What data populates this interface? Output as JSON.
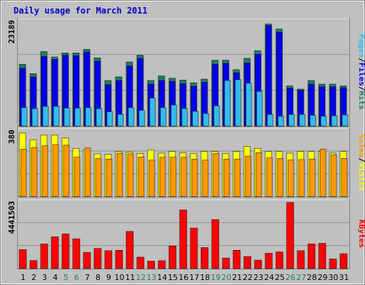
{
  "chart_data": [
    {
      "type": "bar",
      "title": "Daily usage for March 2011",
      "panel": "hits-files-pages",
      "ymax_label": "23189",
      "ymax": 23189,
      "series_labels": [
        "Pages",
        "/",
        "Files",
        "/",
        "Hits"
      ],
      "series": [
        {
          "name": "Hits",
          "color": "#1f7f5f",
          "values": [
            13700,
            11600,
            16500,
            15300,
            16200,
            16200,
            17000,
            15100,
            10100,
            10900,
            14200,
            15700,
            10100,
            11100,
            10600,
            10200,
            9600,
            10400,
            14600,
            14600,
            12500,
            15000,
            16700,
            22600,
            21500,
            8900,
            8200,
            10100,
            9300,
            9300,
            8900
          ]
        },
        {
          "name": "Files",
          "color": "#0000ee",
          "values": [
            12800,
            10900,
            15400,
            14800,
            15700,
            15600,
            16400,
            14400,
            9200,
            10100,
            13300,
            15000,
            9300,
            10100,
            9900,
            9400,
            8800,
            9700,
            13700,
            13900,
            11800,
            14000,
            15900,
            22300,
            20800,
            8400,
            7900,
            9300,
            8700,
            8700,
            8500
          ]
        },
        {
          "name": "Pages",
          "color": "#33bbee",
          "values": [
            4100,
            3900,
            4400,
            4400,
            4000,
            4000,
            4100,
            3900,
            3200,
            2600,
            4100,
            3500,
            6200,
            4100,
            4700,
            3900,
            3300,
            2800,
            4500,
            10100,
            10300,
            9500,
            7700,
            2600,
            2200,
            2600,
            2600,
            2400,
            2200,
            2300,
            2500
          ]
        }
      ]
    },
    {
      "type": "bar",
      "panel": "visits-sites",
      "ymax_label": "380",
      "ymax": 380,
      "series_labels": [
        "Sites",
        "/",
        "Visits"
      ],
      "series": [
        {
          "name": "Visits",
          "color": "#ffff00",
          "values": [
            370,
            330,
            358,
            358,
            340,
            280,
            272,
            248,
            245,
            262,
            258,
            250,
            272,
            252,
            262,
            255,
            250,
            262,
            262,
            250,
            262,
            292,
            280,
            262,
            262,
            252,
            262,
            262,
            262,
            252,
            262
          ]
        },
        {
          "name": "Sites",
          "color": "#ff9900",
          "values": [
            275,
            285,
            295,
            302,
            298,
            228,
            282,
            221,
            218,
            252,
            248,
            230,
            212,
            228,
            228,
            228,
            218,
            212,
            250,
            218,
            218,
            235,
            255,
            225,
            222,
            212,
            215,
            218,
            275,
            242,
            222
          ]
        }
      ]
    },
    {
      "type": "bar",
      "panel": "kbytes",
      "ymax_label": "4441503",
      "ymax": 4441503,
      "series_labels": [
        "KBytes"
      ],
      "series": [
        {
          "name": "KBytes",
          "color": "#ff0000",
          "values": [
            1280000,
            540000,
            1650000,
            2140000,
            2330000,
            2000000,
            1090000,
            1350000,
            1200000,
            1230000,
            2490000,
            770000,
            500000,
            530000,
            1520000,
            3930000,
            2720000,
            1410000,
            3290000,
            710000,
            1230000,
            810000,
            570000,
            1030000,
            1120000,
            4441503,
            1200000,
            1660000,
            1690000,
            650000,
            1000000
          ]
        }
      ]
    }
  ],
  "x_axis": {
    "labels": [
      "1",
      "2",
      "3",
      "4",
      "5",
      "6",
      "7",
      "8",
      "9",
      "10",
      "11",
      "12",
      "13",
      "14",
      "15",
      "16",
      "17",
      "18",
      "19",
      "20",
      "21",
      "22",
      "23",
      "24",
      "25",
      "26",
      "27",
      "28",
      "29",
      "30",
      "31"
    ],
    "weekend_days": [
      5,
      6,
      12,
      13,
      19,
      20,
      26,
      27
    ],
    "weekend_color": "#1f7f5f",
    "weekday_color": "#000000"
  },
  "colors": {
    "title": "#0000cc",
    "plot_background": "#c0c0c0",
    "page_background": "#ffffff",
    "border": "#808080",
    "label_separator": "#000000"
  }
}
